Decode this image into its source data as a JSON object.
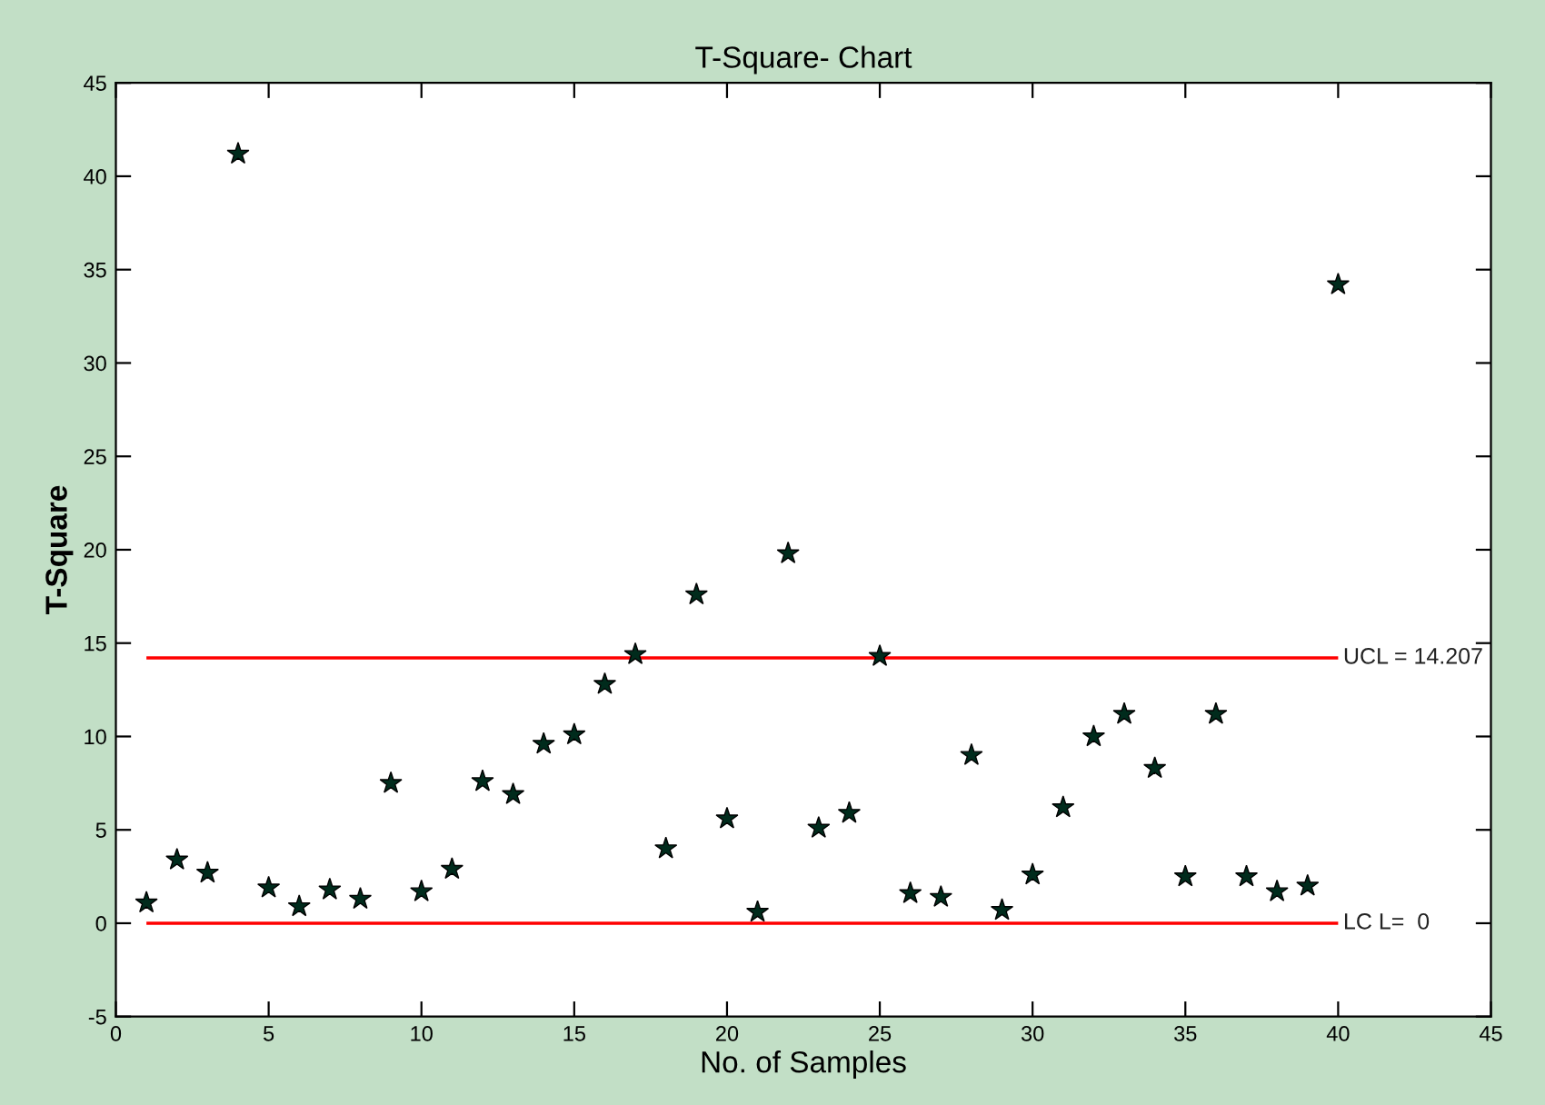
{
  "chart_data": {
    "type": "scatter",
    "title": "T-Square- Chart",
    "xlabel": "No. of Samples",
    "ylabel": "T-Square",
    "x": [
      1,
      2,
      3,
      4,
      5,
      6,
      7,
      8,
      9,
      10,
      11,
      12,
      13,
      14,
      15,
      16,
      17,
      18,
      19,
      20,
      21,
      22,
      23,
      24,
      25,
      26,
      27,
      28,
      29,
      30,
      31,
      32,
      33,
      34,
      35,
      36,
      37,
      38,
      39,
      40
    ],
    "values": [
      1.1,
      3.4,
      2.7,
      41.2,
      1.9,
      0.9,
      1.8,
      1.3,
      7.5,
      1.7,
      2.9,
      7.6,
      6.9,
      9.6,
      10.1,
      12.8,
      14.4,
      4.0,
      17.6,
      5.6,
      0.6,
      19.8,
      5.1,
      5.9,
      14.3,
      1.6,
      1.4,
      9.0,
      0.7,
      2.6,
      6.2,
      10.0,
      11.2,
      8.3,
      2.5,
      11.2,
      2.5,
      1.7,
      2.0,
      34.2
    ],
    "color": "#002b1c",
    "marker": "star",
    "grid": false,
    "xlim": [
      0,
      45
    ],
    "xticks": [
      0,
      5,
      10,
      15,
      20,
      25,
      30,
      35,
      40,
      45
    ],
    "ylim": [
      -5,
      45
    ],
    "yticks": [
      -5,
      0,
      5,
      10,
      15,
      20,
      25,
      30,
      35,
      40,
      45
    ],
    "ref_lines": [
      {
        "axis": "y",
        "value": 14.207,
        "label": "UCL = 14.207",
        "color": "#ff0000"
      },
      {
        "axis": "y",
        "value": 0,
        "label": "LC L=  0",
        "color": "#ff0000"
      }
    ]
  }
}
